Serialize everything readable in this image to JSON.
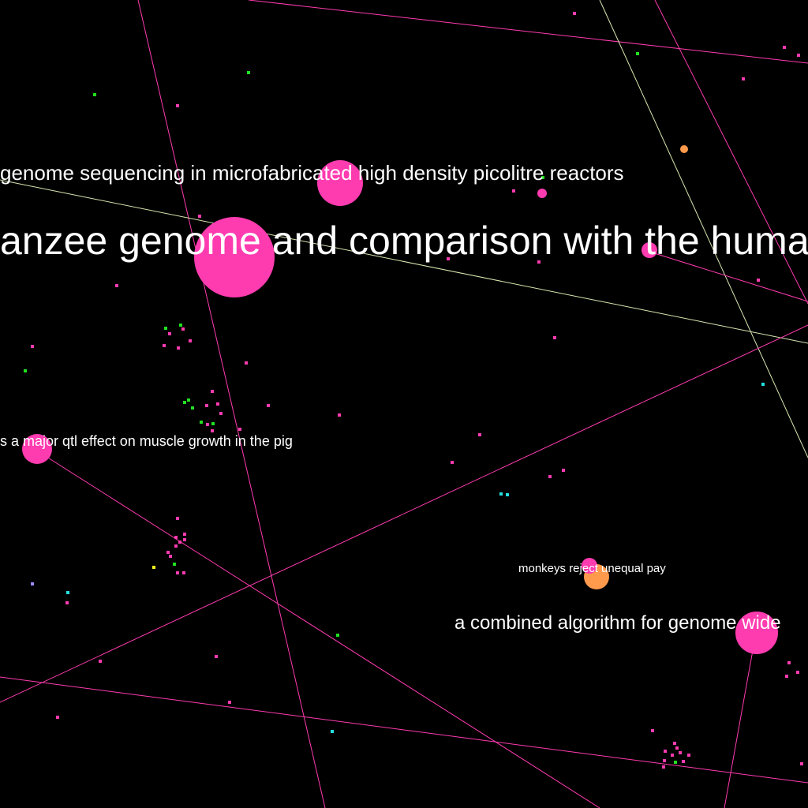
{
  "graph": {
    "background": "#000000",
    "colors": {
      "pink": "#ff3bb0",
      "orange": "#ff9a4d",
      "green": "#22e022",
      "cyan": "#22e0e0",
      "yellow": "#f0f020",
      "violet": "#9a8cff",
      "edge_pink": "#ff3bb0",
      "edge_pale": "#d8e8b0"
    },
    "labels": [
      "genome sequencing in microfabricated high density picolitre reactors",
      "anzee genome and comparison with the huma",
      "s a major qtl effect on muscle growth in the pig",
      "monkeys reject unequal pay",
      "a combined algorithm for genome wide"
    ]
  }
}
